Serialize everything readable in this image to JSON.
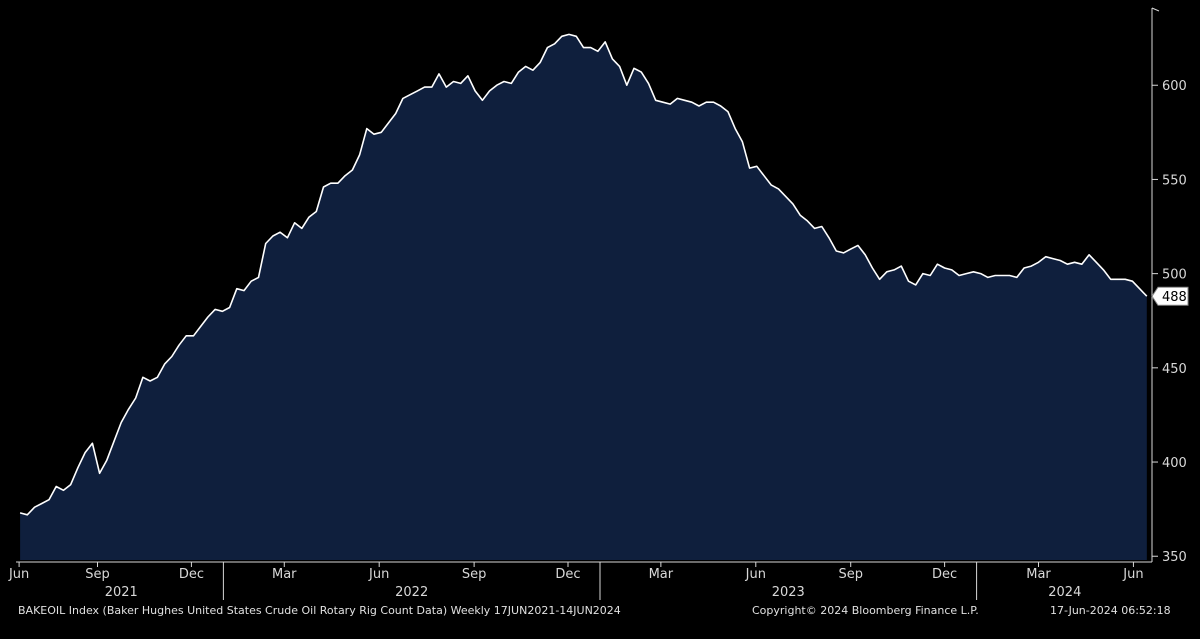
{
  "chart_data": {
    "type": "area",
    "series": [
      {
        "x": [
          "2021-06-18",
          "2021-06-25",
          "2021-07-02",
          "2021-07-09",
          "2021-07-16",
          "2021-07-23",
          "2021-07-30",
          "2021-08-06",
          "2021-08-13",
          "2021-08-20",
          "2021-08-27",
          "2021-09-03",
          "2021-09-10",
          "2021-09-17",
          "2021-09-24",
          "2021-10-01",
          "2021-10-08",
          "2021-10-15",
          "2021-10-22",
          "2021-10-29",
          "2021-11-05",
          "2021-11-12",
          "2021-11-19",
          "2021-11-26",
          "2021-12-03",
          "2021-12-10",
          "2021-12-17",
          "2021-12-24",
          "2021-12-31",
          "2022-01-07",
          "2022-01-14",
          "2022-01-21",
          "2022-01-28",
          "2022-02-04",
          "2022-02-11",
          "2022-02-18",
          "2022-02-25",
          "2022-03-04",
          "2022-03-11",
          "2022-03-18",
          "2022-03-25",
          "2022-04-01",
          "2022-04-08",
          "2022-04-15",
          "2022-04-22",
          "2022-04-29",
          "2022-05-06",
          "2022-05-13",
          "2022-05-20",
          "2022-05-27",
          "2022-06-03",
          "2022-06-10",
          "2022-06-17",
          "2022-06-24",
          "2022-07-01",
          "2022-07-08",
          "2022-07-15",
          "2022-07-22",
          "2022-07-29",
          "2022-08-05",
          "2022-08-12",
          "2022-08-19",
          "2022-08-26",
          "2022-09-02",
          "2022-09-09",
          "2022-09-16",
          "2022-09-23",
          "2022-09-30",
          "2022-10-07",
          "2022-10-14",
          "2022-10-21",
          "2022-10-28",
          "2022-11-04",
          "2022-11-11",
          "2022-11-18",
          "2022-11-25",
          "2022-12-02",
          "2022-12-09",
          "2022-12-16",
          "2022-12-23",
          "2022-12-30",
          "2023-01-06",
          "2023-01-13",
          "2023-01-20",
          "2023-01-27",
          "2023-02-03",
          "2023-02-10",
          "2023-02-17",
          "2023-02-24",
          "2023-03-03",
          "2023-03-10",
          "2023-03-17",
          "2023-03-24",
          "2023-03-31",
          "2023-04-07",
          "2023-04-14",
          "2023-04-21",
          "2023-04-28",
          "2023-05-05",
          "2023-05-12",
          "2023-05-19",
          "2023-05-26",
          "2023-06-02",
          "2023-06-09",
          "2023-06-16",
          "2023-06-23",
          "2023-06-30",
          "2023-07-07",
          "2023-07-14",
          "2023-07-21",
          "2023-07-28",
          "2023-08-04",
          "2023-08-11",
          "2023-08-18",
          "2023-08-25",
          "2023-09-01",
          "2023-09-08",
          "2023-09-15",
          "2023-09-22",
          "2023-09-29",
          "2023-10-06",
          "2023-10-13",
          "2023-10-20",
          "2023-10-27",
          "2023-11-03",
          "2023-11-10",
          "2023-11-17",
          "2023-11-24",
          "2023-12-01",
          "2023-12-08",
          "2023-12-15",
          "2023-12-22",
          "2023-12-29",
          "2024-01-05",
          "2024-01-12",
          "2024-01-19",
          "2024-01-26",
          "2024-02-02",
          "2024-02-09",
          "2024-02-16",
          "2024-02-23",
          "2024-03-01",
          "2024-03-08",
          "2024-03-15",
          "2024-03-22",
          "2024-03-29",
          "2024-04-05",
          "2024-04-12",
          "2024-04-19",
          "2024-04-26",
          "2024-05-03",
          "2024-05-10",
          "2024-05-17",
          "2024-05-24",
          "2024-05-31",
          "2024-06-07",
          "2024-06-14"
        ],
        "values": [
          373,
          372,
          376,
          378,
          380,
          387,
          385,
          388,
          397,
          405,
          410,
          394,
          401,
          411,
          421,
          428,
          434,
          445,
          443,
          445,
          452,
          456,
          462,
          467,
          467,
          472,
          477,
          481,
          480,
          482,
          492,
          491,
          496,
          498,
          516,
          520,
          522,
          519,
          527,
          524,
          530,
          533,
          546,
          548,
          548,
          552,
          555,
          563,
          577,
          574,
          575,
          580,
          585,
          593,
          595,
          597,
          599,
          599,
          606,
          599,
          602,
          601,
          605,
          597,
          592,
          597,
          600,
          602,
          601,
          607,
          610,
          608,
          612,
          620,
          622,
          626,
          627,
          626,
          620,
          620,
          618,
          623,
          614,
          610,
          600,
          609,
          607,
          601,
          592,
          591,
          590,
          593,
          592,
          591,
          589,
          591,
          591,
          589,
          586,
          577,
          570,
          556,
          557,
          552,
          547,
          545,
          541,
          537,
          531,
          528,
          524,
          525,
          519,
          512,
          511,
          513,
          515,
          510,
          503,
          497,
          501,
          502,
          504,
          496,
          494,
          500,
          499,
          505,
          503,
          502,
          499,
          500,
          501,
          500,
          498,
          499,
          499,
          499,
          498,
          503,
          504,
          506,
          509,
          508,
          507,
          505,
          506,
          505,
          510,
          506,
          502,
          497,
          497,
          497,
          496,
          492,
          488
        ]
      }
    ],
    "ylim": [
      348,
      641
    ],
    "yticks": [
      350,
      400,
      450,
      500,
      550,
      600
    ],
    "last_value_label": "488",
    "x_month_ticks": [
      {
        "label": "Jun",
        "date": "2021-06-17"
      },
      {
        "label": "Sep",
        "date": "2021-09-01"
      },
      {
        "label": "Dec",
        "date": "2021-12-01"
      },
      {
        "label": "Mar",
        "date": "2022-03-01"
      },
      {
        "label": "Jun",
        "date": "2022-06-01"
      },
      {
        "label": "Sep",
        "date": "2022-09-01"
      },
      {
        "label": "Dec",
        "date": "2022-12-01"
      },
      {
        "label": "Mar",
        "date": "2023-03-01"
      },
      {
        "label": "Jun",
        "date": "2023-06-01"
      },
      {
        "label": "Sep",
        "date": "2023-09-01"
      },
      {
        "label": "Dec",
        "date": "2023-12-01"
      },
      {
        "label": "Mar",
        "date": "2024-03-01"
      },
      {
        "label": "Jun",
        "date": "2024-06-01"
      }
    ],
    "x_years": [
      {
        "label": "2021",
        "from": "2021-06-17",
        "to": "2022-01-01"
      },
      {
        "label": "2022",
        "from": "2022-01-01",
        "to": "2023-01-01"
      },
      {
        "label": "2023",
        "from": "2023-01-01",
        "to": "2024-01-01"
      },
      {
        "label": "2024",
        "from": "2024-01-01",
        "to": "2024-06-20"
      }
    ],
    "grid": false,
    "colors": {
      "fill": "#0f1f3d",
      "line": "#ffffff",
      "background": "#000000",
      "axis": "#d8d8d8"
    }
  },
  "footer": {
    "source": "BAKEOIL Index (Baker Hughes United States Crude Oil Rotary Rig Count Data)  Weekly 17JUN2021-14JUN2024",
    "copyright": "Copyright© 2024 Bloomberg Finance L.P.",
    "timestamp": "17-Jun-2024 06:52:18"
  }
}
